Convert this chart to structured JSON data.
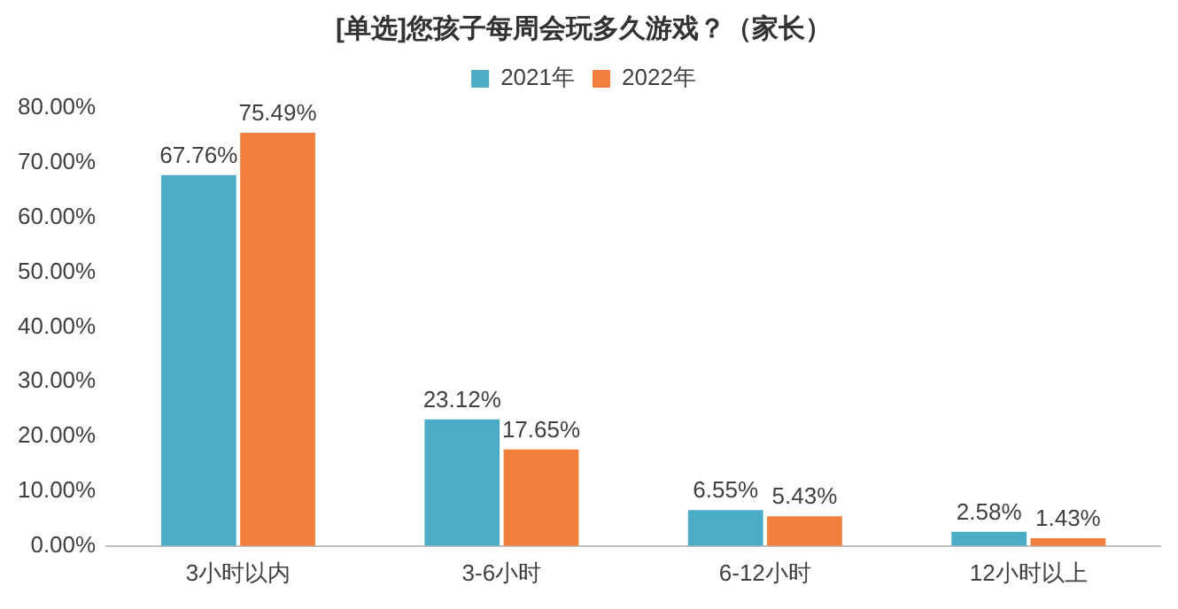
{
  "chart_data": {
    "type": "bar",
    "title": "[单选]您孩子每周会玩多久游戏？（家长）",
    "categories": [
      "3小时以内",
      "3-6小时",
      "6-12小时",
      "12小时以上"
    ],
    "series": [
      {
        "name": "2021年",
        "color": "#4bacc6",
        "values": [
          67.76,
          23.12,
          6.55,
          2.58
        ],
        "value_labels": [
          "67.76%",
          "23.12%",
          "6.55%",
          "2.58%"
        ]
      },
      {
        "name": "2022年",
        "color": "#f07f3c",
        "values": [
          75.49,
          17.65,
          5.43,
          1.43
        ],
        "value_labels": [
          "75.49%",
          "17.65%",
          "5.43%",
          "1.43%"
        ]
      }
    ],
    "ylim": [
      0,
      80
    ],
    "yticks": [
      {
        "value": 0,
        "label": "0.00%"
      },
      {
        "value": 10,
        "label": "10.00%"
      },
      {
        "value": 20,
        "label": "20.00%"
      },
      {
        "value": 30,
        "label": "30.00%"
      },
      {
        "value": 40,
        "label": "40.00%"
      },
      {
        "value": 50,
        "label": "50.00%"
      },
      {
        "value": 60,
        "label": "60.00%"
      },
      {
        "value": 70,
        "label": "70.00%"
      },
      {
        "value": 80,
        "label": "80.00%"
      }
    ],
    "grid": false,
    "legend": "top"
  }
}
